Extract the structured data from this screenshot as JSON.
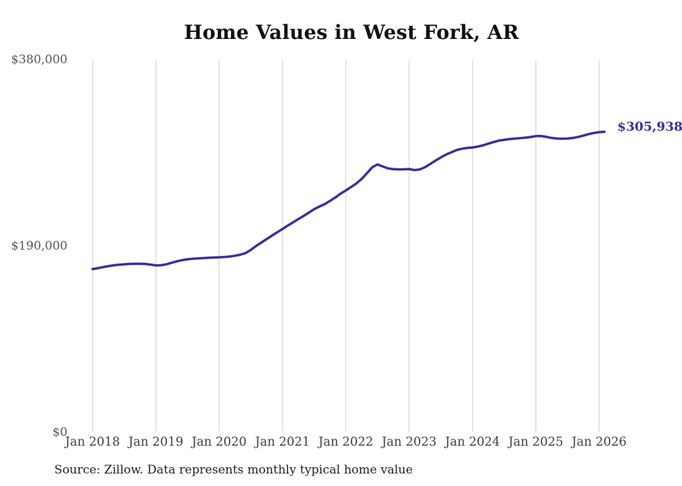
{
  "title": "Home Values in West Fork, AR",
  "source_note": "Source: Zillow. Data represents monthly typical home value",
  "colors": {
    "line": "#38319b",
    "grid": "#cbcbcb",
    "y_tick_text": "#575757",
    "x_tick_text": "#3f3f3f",
    "title_text": "#111111",
    "background": "#ffffff"
  },
  "chart_data": {
    "type": "line",
    "title": "Home Values in West Fork, AR",
    "xlabel": "",
    "ylabel": "",
    "x_start": "Jan 2018",
    "x_interval": "monthly",
    "x_tick_labels": [
      "Jan 2018",
      "Jan 2019",
      "Jan 2020",
      "Jan 2021",
      "Jan 2022",
      "Jan 2023",
      "Jan 2024",
      "Jan 2025",
      "Jan 2026"
    ],
    "y_ticks": [
      {
        "label": "$0",
        "value": 0
      },
      {
        "label": "$190,000",
        "value": 190000
      },
      {
        "label": "$380,000",
        "value": 380000
      }
    ],
    "ylim": [
      0,
      380000
    ],
    "grid": "vertical-only",
    "legend": "none",
    "end_label": "$305,938",
    "final_value": 305938,
    "values": [
      165900,
      166800,
      167900,
      168900,
      169700,
      170300,
      170800,
      171100,
      171300,
      171300,
      171100,
      170400,
      169600,
      169800,
      170800,
      172300,
      173800,
      175000,
      175900,
      176400,
      176800,
      177100,
      177400,
      177700,
      177900,
      178200,
      178700,
      179500,
      180600,
      182200,
      185500,
      189500,
      193000,
      196500,
      200000,
      203500,
      206800,
      210300,
      213600,
      216900,
      220100,
      223500,
      227000,
      229700,
      232200,
      235400,
      238900,
      242800,
      246100,
      249600,
      253200,
      257900,
      263700,
      269700,
      272600,
      270500,
      268500,
      267800,
      267500,
      267600,
      267900,
      266800,
      267500,
      269800,
      273100,
      276600,
      279800,
      282700,
      285000,
      287300,
      288600,
      289400,
      289900,
      290800,
      292100,
      293800,
      295400,
      296900,
      297700,
      298500,
      298900,
      299400,
      299900,
      300500,
      301500,
      301600,
      300700,
      299600,
      299000,
      298800,
      299000,
      299600,
      300600,
      302000,
      303500,
      304700,
      305500,
      305938
    ]
  }
}
